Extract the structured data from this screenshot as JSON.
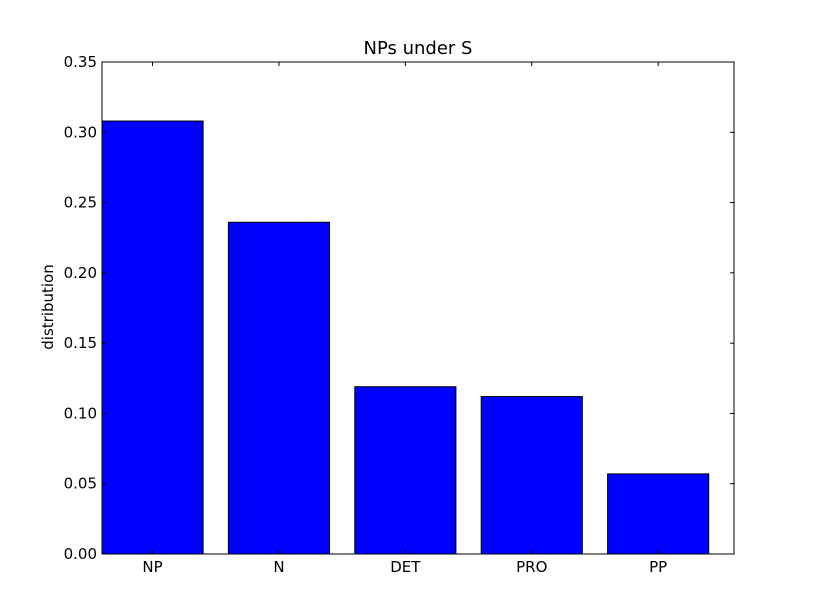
{
  "chart_data": {
    "type": "bar",
    "title": "NPs under S",
    "xlabel": "",
    "ylabel": "distribution",
    "categories": [
      "NP",
      "N",
      "DET",
      "PRO",
      "PP"
    ],
    "values": [
      0.308,
      0.236,
      0.119,
      0.112,
      0.057
    ],
    "ylim": [
      0,
      0.35
    ],
    "yticks": [
      0.0,
      0.05,
      0.1,
      0.15,
      0.2,
      0.25,
      0.3,
      0.35
    ],
    "ytick_labels": [
      "0.00",
      "0.05",
      "0.10",
      "0.15",
      "0.20",
      "0.25",
      "0.30",
      "0.35"
    ],
    "bar_color": "#0000ff",
    "edge_color": "#000000",
    "grid": false
  }
}
